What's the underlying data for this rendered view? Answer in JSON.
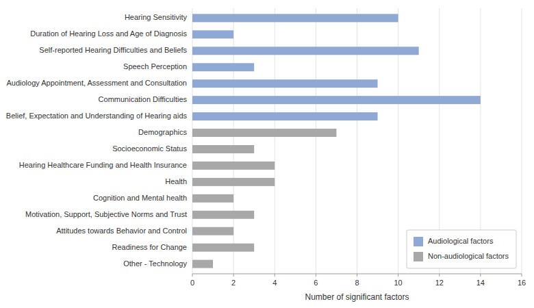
{
  "chart_data": {
    "type": "bar",
    "orientation": "horizontal",
    "stacked": true,
    "categories": [
      "Other - Technology",
      "Readiness for Change",
      "Attitudes towards Behavior and Control",
      "Motivation, Support, Subjective Norms and Trust",
      "Cognition and Mental health",
      "Health",
      "Hearing Healthcare Funding and Health Insurance",
      "Socioeconomic Status",
      "Demographics",
      "Belief, Expectation and Understanding of Hearing aids",
      "Communication Difficulties",
      "Audiology Appointment, Assessment and Consultation",
      "Speech Perception",
      "Self-reported Hearing Difficulties and Beliefs",
      "Duration of Hearing Loss and Age of Diagnosis",
      "Hearing Sensitivity"
    ],
    "series": [
      {
        "name": "Audiological factors",
        "color": "#8fa8d4",
        "values": [
          null,
          null,
          null,
          null,
          null,
          null,
          null,
          null,
          null,
          9,
          14,
          9,
          3,
          11,
          2,
          10
        ]
      },
      {
        "name": "Non-audiological factors",
        "color": "#a8a8a8",
        "values": [
          1,
          3,
          2,
          3,
          2,
          4,
          4,
          3,
          7,
          null,
          null,
          null,
          null,
          null,
          null,
          null
        ]
      }
    ],
    "x_label": "Number of significant factors",
    "xlim": [
      0,
      16
    ],
    "xticks": [
      0,
      2,
      4,
      6,
      8,
      10,
      12,
      14,
      16
    ],
    "grid": true,
    "legend": "lower right"
  }
}
